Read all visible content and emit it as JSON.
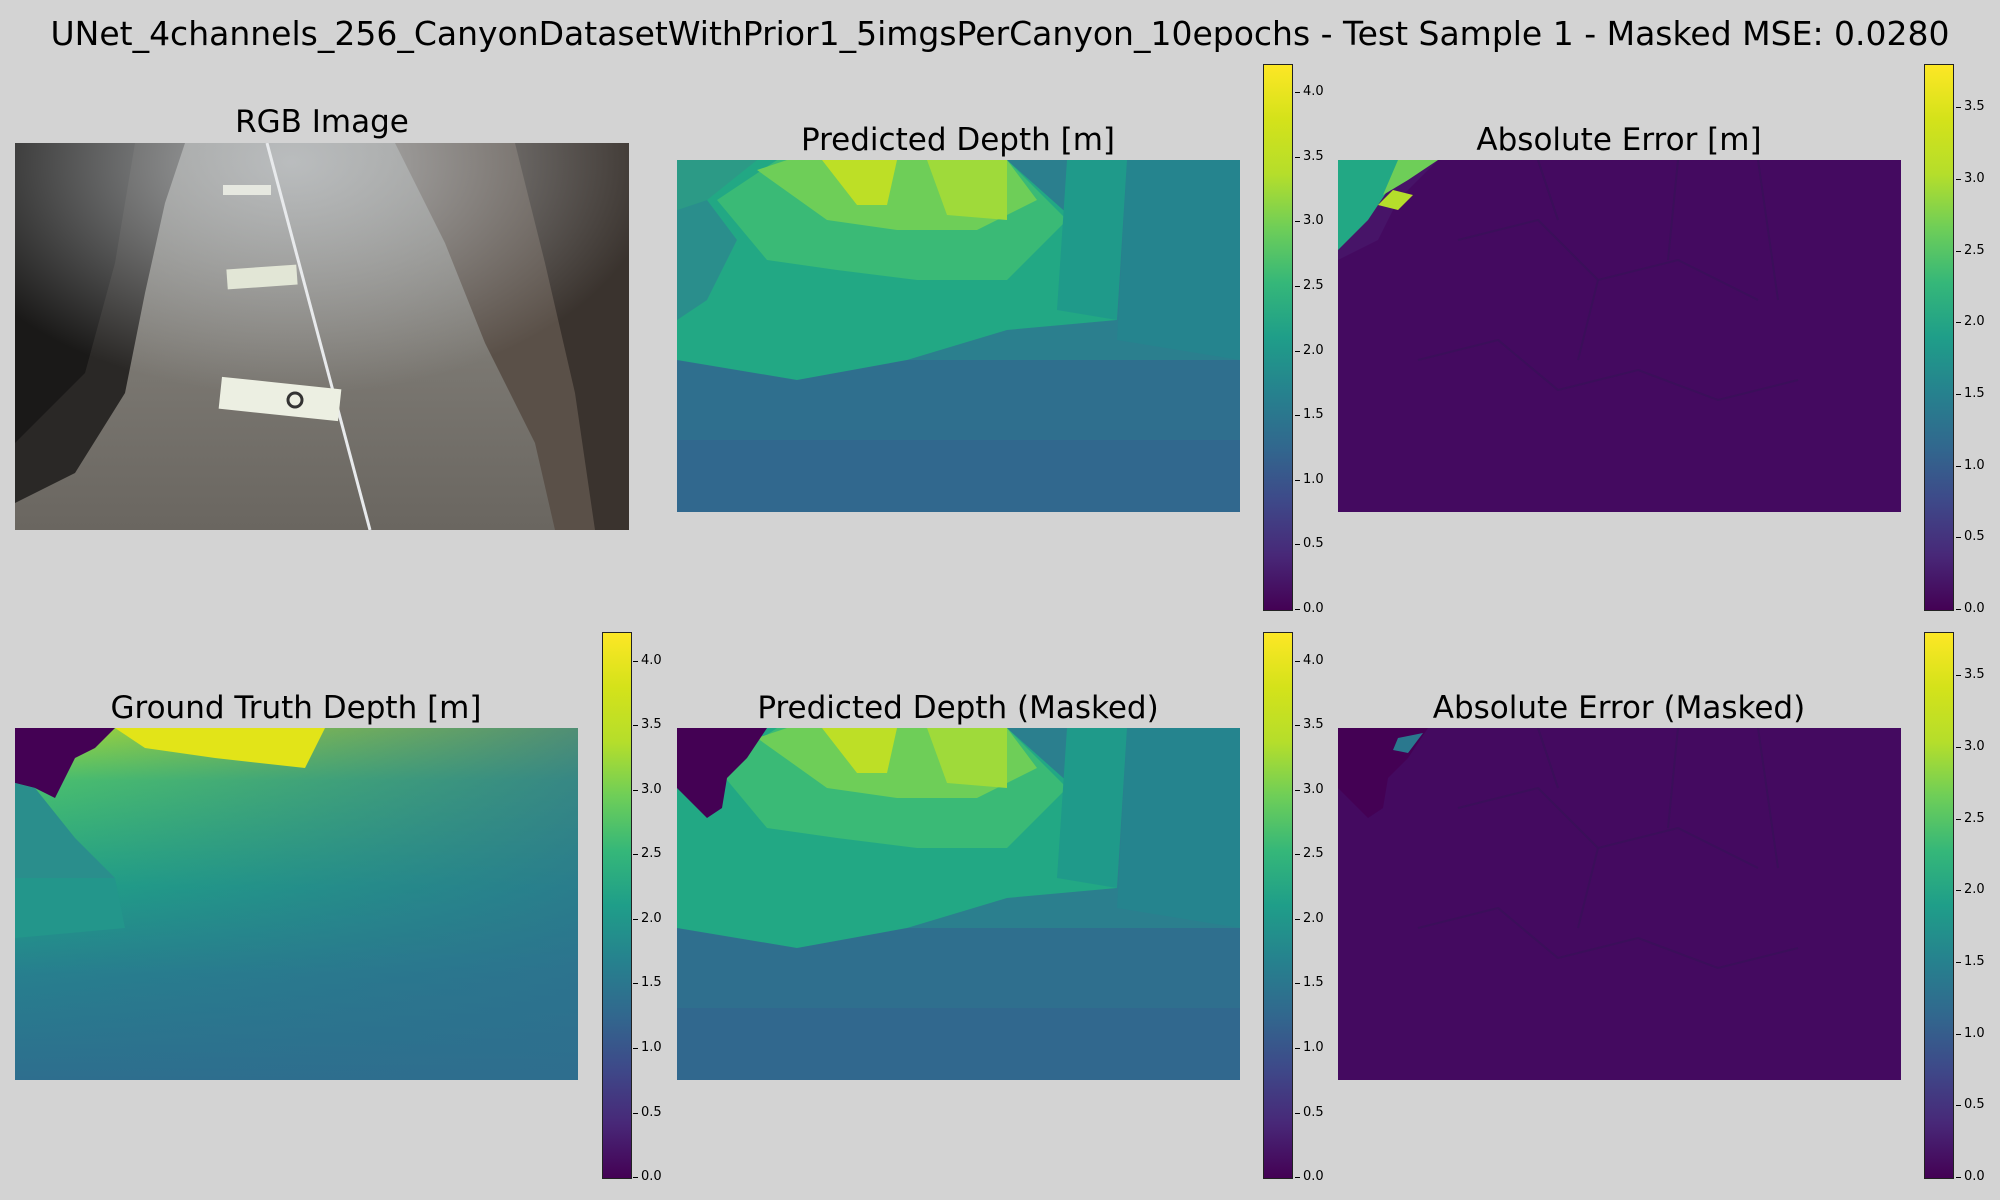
{
  "figure": {
    "suptitle": "UNet_4channels_256_CanyonDatasetWithPrior1_5imgsPerCanyon_10epochs - Test Sample 1 - Masked MSE: 0.0280"
  },
  "panels": {
    "rgb": {
      "title": "RGB Image"
    },
    "pred": {
      "title": "Predicted Depth [m]"
    },
    "abserr": {
      "title": "Absolute Error [m]"
    },
    "gt": {
      "title": "Ground Truth Depth [m]"
    },
    "pred_masked": {
      "title": "Predicted Depth (Masked)"
    },
    "abserr_masked": {
      "title": "Absolute Error (Masked)"
    }
  },
  "colorbars": {
    "depth": {
      "min": 0.0,
      "max": 4.2,
      "ticks": [
        "0.0",
        "0.5",
        "1.0",
        "1.5",
        "2.0",
        "2.5",
        "3.0",
        "3.5",
        "4.0"
      ]
    },
    "error": {
      "min": 0.0,
      "max": 3.8,
      "ticks": [
        "0.0",
        "0.5",
        "1.0",
        "1.5",
        "2.0",
        "2.5",
        "3.0",
        "3.5"
      ]
    }
  },
  "colors": {
    "background": "#d3d3d3",
    "colormap": "viridis",
    "viridis_low": "#440154",
    "viridis_high": "#fde725"
  }
}
